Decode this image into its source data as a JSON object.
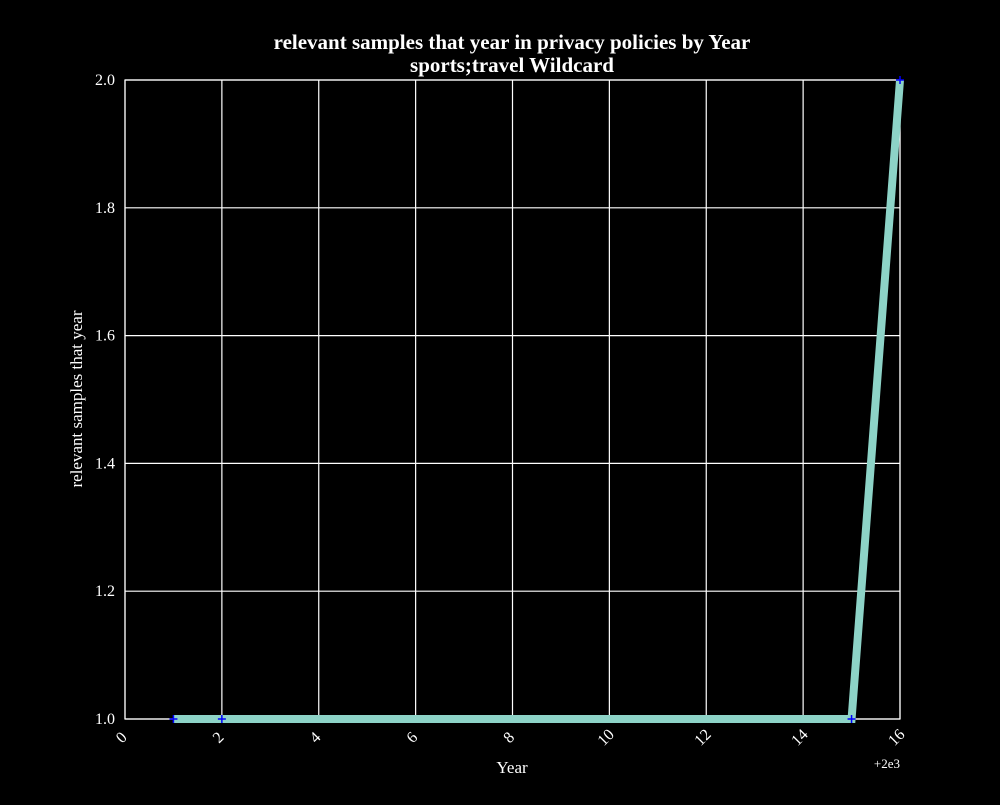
{
  "chart_data": {
    "type": "line",
    "title": "relevant samples that year in privacy policies by Year",
    "subtitle": "sports;travel Wildcard",
    "xlabel": "Year",
    "ylabel": "relevant samples that year",
    "x_offset_label": "+2e3",
    "x_offset": 2000,
    "xlim": [
      2000,
      2016
    ],
    "ylim": [
      1.0,
      2.0
    ],
    "xticks": [
      2000,
      2002,
      2004,
      2006,
      2008,
      2010,
      2012,
      2014,
      2016
    ],
    "xtick_labels": [
      "0",
      "2",
      "4",
      "6",
      "8",
      "10",
      "12",
      "14",
      "16"
    ],
    "yticks": [
      1.0,
      1.2,
      1.4,
      1.6,
      1.8,
      2.0
    ],
    "ytick_labels": [
      "1.0",
      "1.2",
      "1.4",
      "1.6",
      "1.8",
      "2.0"
    ],
    "grid": true,
    "series": [
      {
        "x": [
          2001,
          2002,
          2015,
          2016
        ],
        "values": [
          1,
          1,
          1,
          2
        ],
        "color": "#8dd3c7",
        "marker_color": "#0000ff"
      }
    ]
  },
  "colors": {
    "background": "#000000",
    "grid": "#ffffff",
    "text": "#ffffff",
    "line": "#8dd3c7",
    "marker": "#0000ff"
  }
}
